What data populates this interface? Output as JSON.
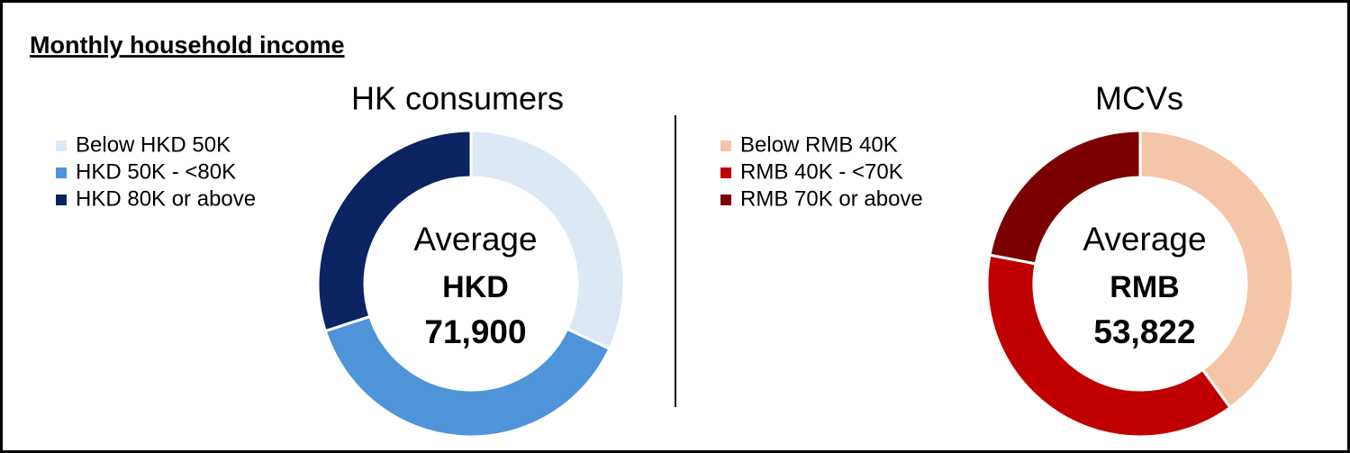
{
  "heading": "Monthly household income",
  "chart_data": [
    {
      "type": "donut",
      "title": "HK consumers",
      "categories": [
        "Below HKD 50K",
        "HKD 50K - <80K",
        "HKD 80K or above"
      ],
      "values": [
        32,
        38,
        30
      ],
      "colors": [
        "#dde8f5",
        "#4f93d8",
        "#0a2461"
      ],
      "center_text": [
        "Average",
        "HKD",
        "71,900"
      ]
    },
    {
      "type": "donut",
      "title": "MCVs",
      "categories": [
        "Below RMB 40K",
        "RMB 40K - <70K",
        "RMB 70K or above"
      ],
      "values": [
        40,
        38,
        22
      ],
      "colors": [
        "#f5c5a8",
        "#c00000",
        "#7b0000"
      ],
      "center_text": [
        "Average",
        "RMB",
        "53,822"
      ]
    }
  ]
}
